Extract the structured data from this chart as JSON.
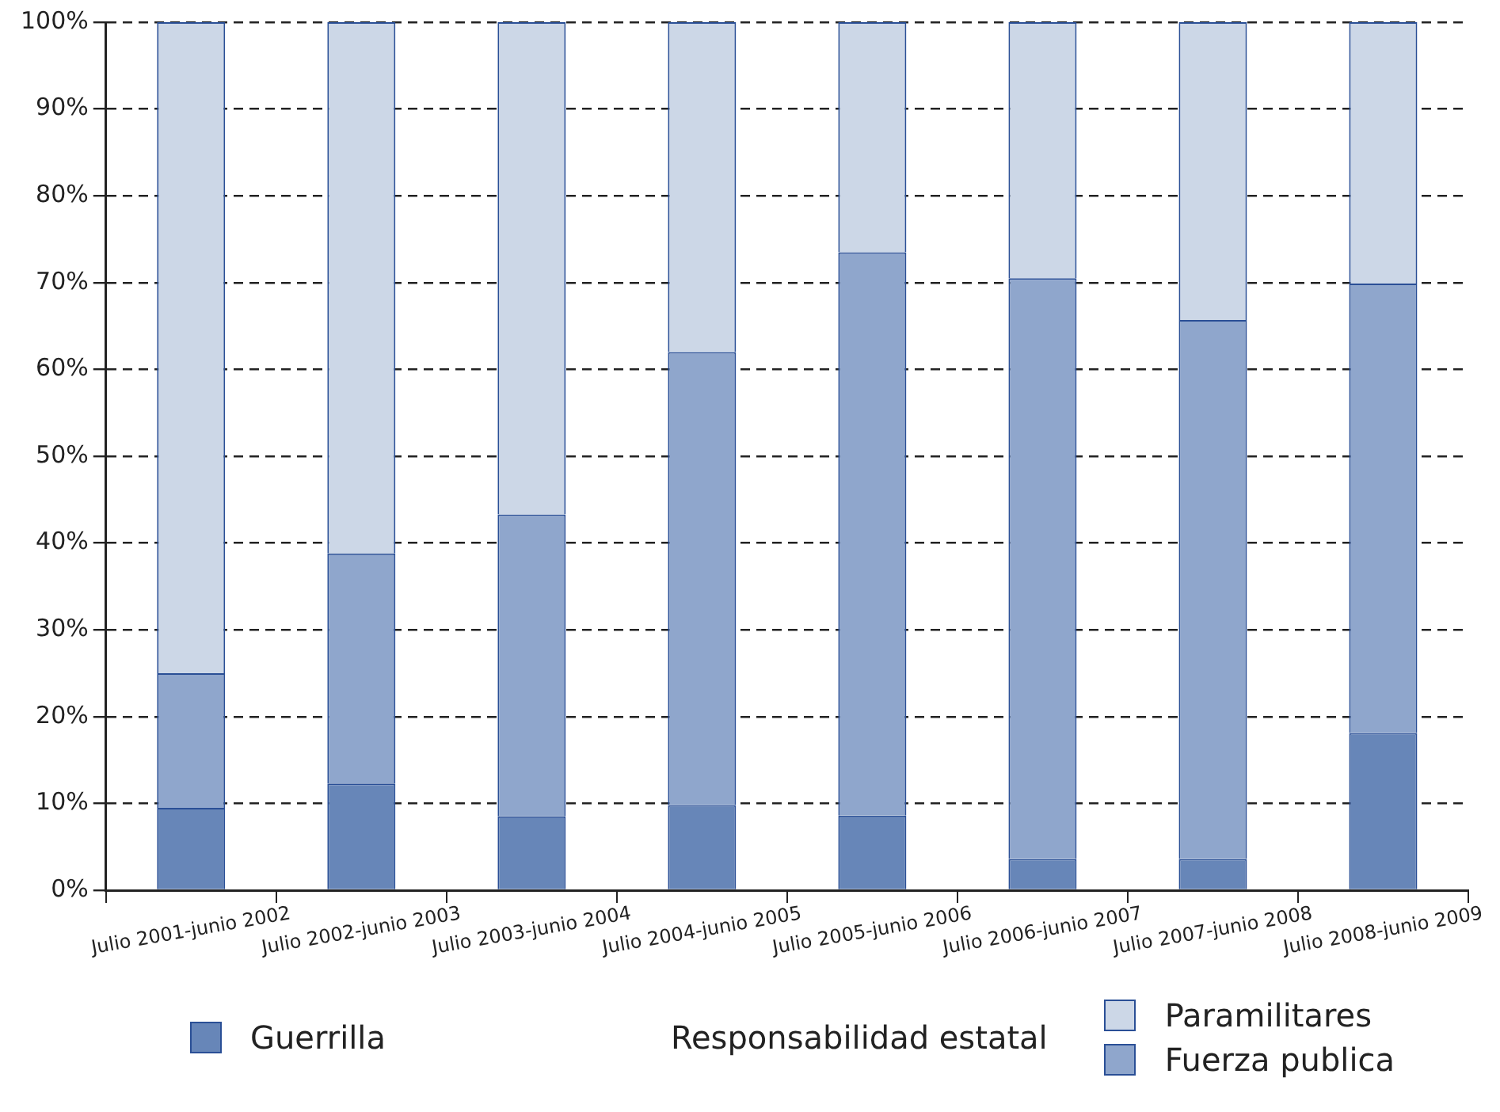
{
  "chart_data": {
    "type": "bar",
    "stacked": true,
    "categories": [
      "Julio 2001-junio 2002",
      "Julio 2002-junio 2003",
      "Julio 2003-junio 2004",
      "Julio 2004-junio 2005",
      "Julio 2005-junio 2006",
      "Julio 2006-junio 2007",
      "Julio 2007-junio 2008",
      "Julio 2008-junio 2009"
    ],
    "series": [
      {
        "name": "Guerrilla",
        "color": "#6786b8",
        "values": [
          9.5,
          12.3,
          8.5,
          9.8,
          8.6,
          3.6,
          3.6,
          18.1
        ]
      },
      {
        "name": "Fuerza publica",
        "color": "#8fa6cc",
        "values": [
          15.5,
          26.5,
          34.8,
          52.2,
          64.9,
          66.9,
          62.1,
          51.8
        ]
      },
      {
        "name": "Paramilitares",
        "color": "#ccd7e7",
        "values": [
          75,
          61.2,
          56.7,
          38,
          26.5,
          29.5,
          34.3,
          30.1
        ]
      }
    ],
    "legend_title": "Responsabilidad estatal",
    "legend": "bottom",
    "grid": "y",
    "ylim": [
      0,
      100
    ],
    "yticks": [
      {
        "value": 0,
        "label": "0%"
      },
      {
        "value": 10,
        "label": "10%"
      },
      {
        "value": 20,
        "label": "20%"
      },
      {
        "value": 30,
        "label": "30%"
      },
      {
        "value": 40,
        "label": "40%"
      },
      {
        "value": 50,
        "label": "50%"
      },
      {
        "value": 60,
        "label": "60%"
      },
      {
        "value": 70,
        "label": "70%"
      },
      {
        "value": 80,
        "label": "80%"
      },
      {
        "value": 90,
        "label": "90%"
      },
      {
        "value": 100,
        "label": "100%"
      }
    ]
  }
}
